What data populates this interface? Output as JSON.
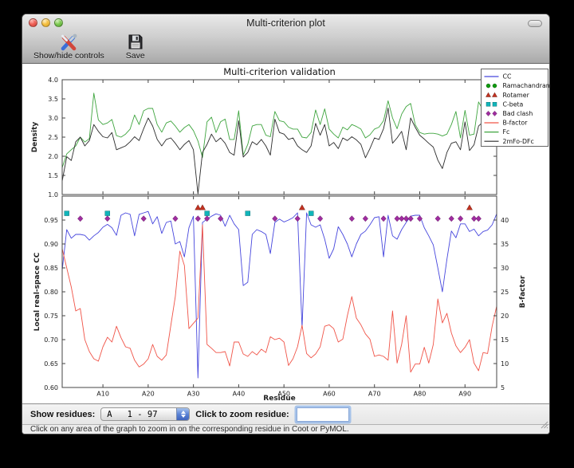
{
  "window": {
    "title": "Multi-criterion plot"
  },
  "toolbar": {
    "show_hide_label": "Show/hide controls",
    "save_label": "Save"
  },
  "controls": {
    "show_residues_label": "Show residues:",
    "residue_range_value": "A   1 - 97",
    "zoom_residue_label": "Click to zoom residue:",
    "zoom_input_value": ""
  },
  "statusbar": {
    "text": "Click on any area of the graph to zoom in on the corresponding residue in Coot or PyMOL."
  },
  "chart_data": {
    "type": "line",
    "title": "Multi-criterion validation",
    "xlabel": "Residue",
    "x_start": 1,
    "x_step": 1,
    "x_count": 97,
    "xticks": {
      "values": [
        10,
        20,
        30,
        40,
        50,
        60,
        70,
        80,
        90
      ],
      "labels": [
        "A10",
        "A20",
        "A30",
        "A40",
        "A50",
        "A60",
        "A70",
        "A80",
        "A90"
      ]
    },
    "legend_position": "upper right",
    "grid": false,
    "legend": [
      {
        "label": "CC",
        "glyph": "line",
        "color": "#4646dd"
      },
      {
        "label": "Ramachandran",
        "glyph": "circle",
        "color": "#0f9b0f"
      },
      {
        "label": "Rotamer",
        "glyph": "triangle",
        "color": "#c23120"
      },
      {
        "label": "C-beta",
        "glyph": "square",
        "color": "#10b5ba"
      },
      {
        "label": "Bad clash",
        "glyph": "diamond",
        "color": "#a02ca0"
      },
      {
        "label": "B-factor",
        "glyph": "line",
        "color": "#f05448"
      },
      {
        "label": "Fc",
        "glyph": "line",
        "color": "#3fa53f"
      },
      {
        "label": "2mFo-DFc",
        "glyph": "line",
        "color": "#2b2b2b"
      }
    ],
    "subplots": [
      {
        "ylabel": "Density",
        "ylim": [
          1.0,
          4.0
        ],
        "yticks": {
          "values": [
            1.0,
            1.5,
            2.0,
            2.5,
            3.0,
            3.5,
            4.0
          ],
          "labels": [
            "1.0",
            "1.5",
            "2.0",
            "2.5",
            "3.0",
            "3.5",
            "4.0"
          ]
        },
        "series": [
          {
            "name": "Fc",
            "color": "#3fa53f",
            "values": [
              1.7,
              2.06,
              2.17,
              2.27,
              2.5,
              2.37,
              2.46,
              3.65,
              2.95,
              2.83,
              2.87,
              2.96,
              2.54,
              2.5,
              2.58,
              2.71,
              3.08,
              2.83,
              3.19,
              3.25,
              3.25,
              2.83,
              2.63,
              2.87,
              2.92,
              2.79,
              2.63,
              2.75,
              2.83,
              2.67,
              2.4,
              1.97,
              2.9,
              3.02,
              2.62,
              2.9,
              2.97,
              2.44,
              2.44,
              3.19,
              2.03,
              2.31,
              2.79,
              2.83,
              2.83,
              2.55,
              2.51,
              3.17,
              2.93,
              2.9,
              2.76,
              2.71,
              2.71,
              2.5,
              2.48,
              2.62,
              3.21,
              2.83,
              3.24,
              2.71,
              2.58,
              2.48,
              2.76,
              2.69,
              2.83,
              2.78,
              2.71,
              2.48,
              2.56,
              2.71,
              2.76,
              2.93,
              3.45,
              3.0,
              2.72,
              3.1,
              3.3,
              3.38,
              2.83,
              2.62,
              2.58,
              2.6,
              2.6,
              2.58,
              2.53,
              2.58,
              2.83,
              3.17,
              2.48,
              3.2,
              2.55,
              2.58,
              3.42,
              3.2,
              3.0,
              3.1,
              3.15
            ]
          },
          {
            "name": "2mFo-DFc",
            "color": "#2b2b2b",
            "values": [
              1.35,
              1.99,
              1.89,
              2.38,
              2.5,
              2.27,
              2.41,
              2.83,
              2.65,
              2.51,
              2.48,
              2.62,
              2.17,
              2.22,
              2.27,
              2.38,
              2.51,
              2.41,
              2.72,
              3.0,
              2.79,
              2.44,
              2.27,
              2.44,
              2.48,
              2.34,
              2.17,
              2.31,
              2.41,
              2.17,
              1.02,
              2.1,
              2.31,
              2.58,
              2.38,
              2.48,
              2.34,
              2.1,
              2.03,
              2.93,
              1.98,
              2.1,
              2.38,
              2.3,
              2.44,
              2.27,
              2.03,
              2.97,
              2.62,
              2.58,
              2.44,
              2.48,
              2.27,
              2.17,
              2.1,
              2.27,
              2.86,
              2.55,
              2.83,
              2.27,
              2.36,
              2.2,
              2.48,
              2.41,
              2.51,
              2.43,
              2.31,
              1.96,
              2.2,
              2.48,
              2.44,
              2.72,
              3.26,
              2.34,
              2.48,
              2.65,
              2.17,
              3.0,
              2.76,
              2.55,
              2.45,
              2.34,
              2.24,
              1.9,
              1.68,
              2.1,
              2.34,
              2.38,
              2.17,
              2.9,
              2.15,
              2.3,
              2.79,
              2.9,
              2.6,
              2.75,
              2.96
            ]
          }
        ]
      },
      {
        "ylabel": "Local real-space CC",
        "ylim": [
          0.6,
          1.0
        ],
        "yticks": {
          "values": [
            0.6,
            0.65,
            0.7,
            0.75,
            0.8,
            0.85,
            0.9,
            0.95
          ],
          "labels": [
            "0.60",
            "0.65",
            "0.70",
            "0.75",
            "0.80",
            "0.85",
            "0.90",
            "0.95"
          ]
        },
        "y2label": "B-factor",
        "y2lim": [
          5,
          45
        ],
        "y2ticks": {
          "values": [
            5,
            10,
            15,
            20,
            25,
            30,
            35,
            40
          ],
          "labels": [
            "5",
            "10",
            "15",
            "20",
            "25",
            "30",
            "35",
            "40"
          ]
        },
        "series": [
          {
            "name": "CC",
            "axis": "left",
            "color": "#4646dd",
            "values": [
              0.845,
              0.93,
              0.912,
              0.92,
              0.92,
              0.918,
              0.908,
              0.917,
              0.924,
              0.935,
              0.941,
              0.934,
              0.918,
              0.96,
              0.965,
              0.962,
              0.917,
              0.962,
              0.965,
              0.968,
              0.942,
              0.957,
              0.922,
              0.945,
              0.948,
              0.9,
              0.905,
              0.873,
              0.934,
              0.958,
              0.62,
              0.945,
              0.952,
              0.958,
              0.963,
              0.96,
              0.937,
              0.96,
              0.942,
              0.93,
              0.813,
              0.82,
              0.92,
              0.93,
              0.926,
              0.92,
              0.88,
              0.945,
              0.952,
              0.946,
              0.95,
              0.955,
              0.965,
              0.725,
              0.965,
              0.94,
              0.935,
              0.94,
              0.91,
              0.87,
              0.89,
              0.936,
              0.92,
              0.9,
              0.873,
              0.9,
              0.92,
              0.927,
              0.94,
              0.955,
              0.957,
              0.873,
              0.96,
              0.917,
              0.91,
              0.93,
              0.945,
              0.958,
              0.96,
              0.96,
              0.934,
              0.917,
              0.898,
              0.85,
              0.8,
              0.868,
              0.927,
              0.913,
              0.942,
              0.942,
              0.926,
              0.931,
              0.917,
              0.926,
              0.929,
              0.94,
              0.963
            ]
          },
          {
            "name": "B-factor",
            "axis": "right",
            "color": "#f05448",
            "values": [
              34.0,
              30.0,
              26.0,
              21.0,
              21.5,
              15.0,
              12.5,
              11.0,
              10.5,
              13.5,
              15.5,
              14.5,
              17.8,
              15.4,
              13.5,
              13.2,
              10.7,
              9.3,
              9.9,
              11.0,
              14.0,
              11.5,
              10.7,
              11.8,
              18.0,
              24.0,
              33.5,
              30.5,
              17.3,
              18.4,
              19.5,
              39.0,
              14.0,
              13.2,
              12.3,
              12.3,
              12.5,
              9.5,
              14.5,
              14.5,
              12.0,
              11.5,
              12.5,
              11.8,
              13.0,
              12.3,
              15.6,
              15.0,
              15.3,
              14.5,
              9.6,
              11.0,
              13.5,
              18.0,
              12.1,
              11.2,
              12.0,
              13.5,
              17.8,
              18.1,
              17.3,
              14.5,
              15.1,
              20.0,
              24.0,
              19.5,
              18.1,
              16.2,
              15.1,
              11.5,
              11.8,
              11.5,
              10.7,
              21.0,
              10.1,
              14.0,
              20.0,
              8.2,
              9.9,
              9.9,
              13.4,
              10.1,
              14.0,
              23.5,
              18.5,
              20.5,
              16.4,
              13.7,
              12.3,
              13.4,
              15.0,
              10.1,
              8.5,
              12.3,
              12.1,
              17.8,
              22.0
            ]
          }
        ],
        "markers": [
          {
            "name": "Ramachandran",
            "shape": "circle",
            "color": "#0f9b0f",
            "row_cc": 0.988,
            "residues": []
          },
          {
            "name": "Rotamer",
            "shape": "triangle",
            "color": "#c23120",
            "row_cc": 0.976,
            "residues": [
              31,
              32,
              54,
              91
            ]
          },
          {
            "name": "C-beta",
            "shape": "square",
            "color": "#10b5ba",
            "row_cc": 0.964,
            "residues": [
              2,
              11,
              33,
              42,
              56
            ]
          },
          {
            "name": "Bad clash",
            "shape": "diamond",
            "color": "#a02ca0",
            "row_cc": 0.953,
            "residues": [
              5,
              11,
              19,
              26,
              31,
              33,
              36,
              48,
              53,
              58,
              65,
              68,
              72,
              75,
              76,
              77,
              78,
              80,
              84,
              87,
              89,
              92,
              93
            ]
          }
        ]
      }
    ]
  }
}
